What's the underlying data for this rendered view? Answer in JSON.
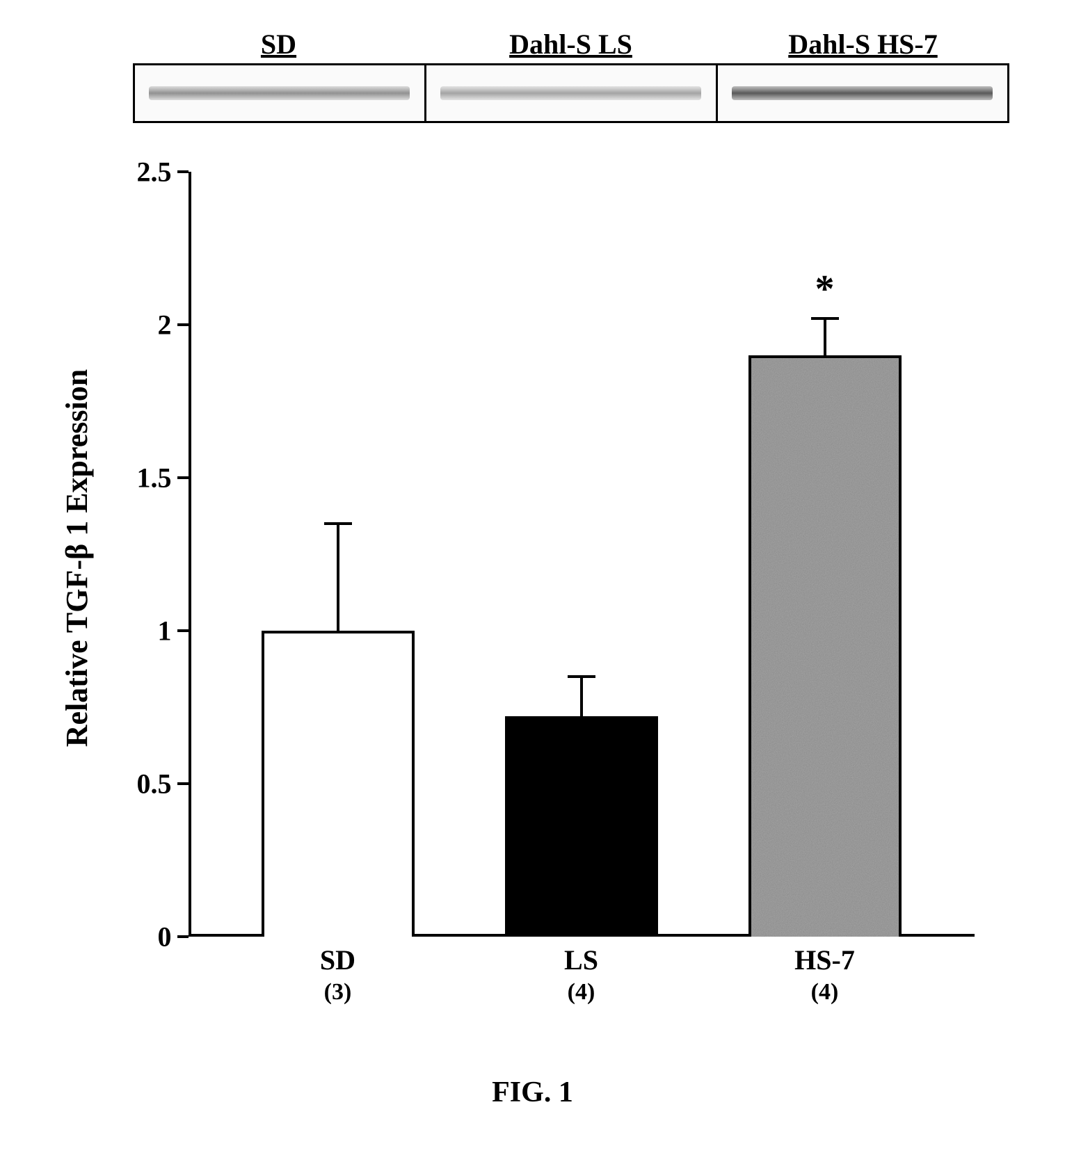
{
  "blot": {
    "lanes": [
      {
        "label": "SD",
        "intensity": 0.55,
        "color": "#6b6b6b"
      },
      {
        "label": "Dahl-S LS",
        "intensity": 0.45,
        "color": "#7a7a7a"
      },
      {
        "label": "Dahl-S HS-7",
        "intensity": 0.85,
        "color": "#4a4a4a"
      }
    ],
    "border_color": "#000000",
    "background_color": "#fafafa"
  },
  "chart": {
    "type": "bar",
    "ylabel": "Relative TGF-β 1 Expression",
    "ylim": [
      0,
      2.5
    ],
    "yticks": [
      0,
      0.5,
      1,
      1.5,
      2,
      2.5
    ],
    "axis_color": "#000000",
    "axis_width": 4,
    "label_fontsize": 44,
    "tick_fontsize": 40,
    "bar_border_width": 4,
    "bars": [
      {
        "label": "SD",
        "n": "(3)",
        "value": 1.0,
        "error": 0.35,
        "fill": "#ffffff",
        "pattern": "none",
        "annotation": ""
      },
      {
        "label": "LS",
        "n": "(4)",
        "value": 0.72,
        "error": 0.13,
        "fill": "#000000",
        "pattern": "none",
        "annotation": ""
      },
      {
        "label": "HS-7",
        "n": "(4)",
        "value": 1.9,
        "error": 0.12,
        "fill": "#888888",
        "pattern": "noise",
        "annotation": "*"
      }
    ],
    "annotation_fontsize": 56
  },
  "caption": "FIG. 1"
}
